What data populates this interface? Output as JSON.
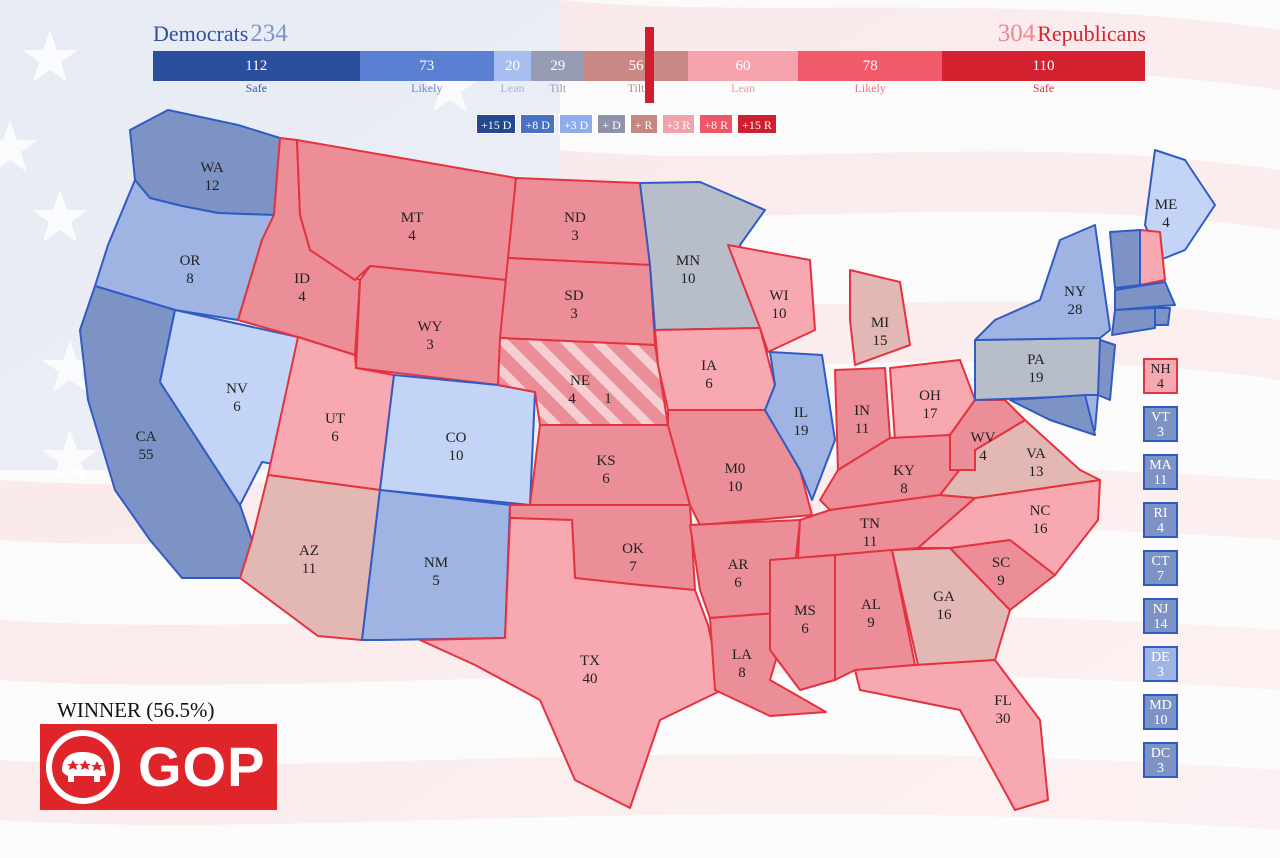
{
  "header": {
    "dem_label": "Democrats",
    "dem_total": "234",
    "rep_total": "304",
    "rep_label": "Republicans"
  },
  "bar": [
    {
      "value": 112,
      "label": "Safe",
      "color": "#2a4d9c"
    },
    {
      "value": 73,
      "label": "Likely",
      "color": "#5b80d3"
    },
    {
      "value": 20,
      "label": "Lean",
      "color": "#a6bff0"
    },
    {
      "value": 29,
      "label": "Tilt",
      "color": "#979bb4"
    },
    {
      "value": 56,
      "label": "Tilt",
      "color": "#c98884"
    },
    {
      "value": 60,
      "label": "Lean",
      "color": "#f7a3ad"
    },
    {
      "value": 78,
      "label": "Likely",
      "color": "#f05a6a"
    },
    {
      "value": 110,
      "label": "Safe",
      "color": "#d4212f"
    }
  ],
  "legend": [
    {
      "label": "+15 D",
      "color": "#23488f"
    },
    {
      "label": "+8 D",
      "color": "#4a72c4"
    },
    {
      "label": "+3 D",
      "color": "#8eadeb"
    },
    {
      "label": "+ D",
      "color": "#8f93aa"
    },
    {
      "label": "+ R",
      "color": "#c68780"
    },
    {
      "label": "+3 R",
      "color": "#f2a2aa"
    },
    {
      "label": "+8 R",
      "color": "#ef5565"
    },
    {
      "label": "+15 R",
      "color": "#cf1f2f"
    }
  ],
  "colors": {
    "safe_d": "#7e93c5",
    "likely_d": "#9fb4e3",
    "lean_d": "#c4d4f6",
    "tilt_d": "#b8bdca",
    "tilt_r": "#e3b7b4",
    "lean_r": "#f8a8b1",
    "likely_r": "#ec8e98",
    "safe_r": "#d9303e",
    "stroke_d": "#2f5cc4",
    "stroke_r": "#e5323f"
  },
  "states": {
    "WA": {
      "abbr": "WA",
      "ev": "12",
      "rating": "safe_d"
    },
    "OR": {
      "abbr": "OR",
      "ev": "8",
      "rating": "likely_d"
    },
    "CA": {
      "abbr": "CA",
      "ev": "55",
      "rating": "safe_d"
    },
    "NV": {
      "abbr": "NV",
      "ev": "6",
      "rating": "lean_d"
    },
    "ID": {
      "abbr": "ID",
      "ev": "4",
      "rating": "likely_r"
    },
    "MT": {
      "abbr": "MT",
      "ev": "4",
      "rating": "likely_r"
    },
    "WY": {
      "abbr": "WY",
      "ev": "3",
      "rating": "likely_r"
    },
    "UT": {
      "abbr": "UT",
      "ev": "6",
      "rating": "lean_r"
    },
    "CO": {
      "abbr": "CO",
      "ev": "10",
      "rating": "lean_d"
    },
    "AZ": {
      "abbr": "AZ",
      "ev": "11",
      "rating": "tilt_r"
    },
    "NM": {
      "abbr": "NM",
      "ev": "5",
      "rating": "likely_d"
    },
    "ND": {
      "abbr": "ND",
      "ev": "3",
      "rating": "likely_r"
    },
    "SD": {
      "abbr": "SD",
      "ev": "3",
      "rating": "likely_r"
    },
    "NE": {
      "abbr": "NE",
      "ev": "4",
      "ev2": "1",
      "rating": "likely_r"
    },
    "KS": {
      "abbr": "KS",
      "ev": "6",
      "rating": "likely_r"
    },
    "OK": {
      "abbr": "OK",
      "ev": "7",
      "rating": "likely_r"
    },
    "TX": {
      "abbr": "TX",
      "ev": "40",
      "rating": "lean_r"
    },
    "MN": {
      "abbr": "MN",
      "ev": "10",
      "rating": "tilt_d"
    },
    "IA": {
      "abbr": "IA",
      "ev": "6",
      "rating": "lean_r"
    },
    "MO": {
      "abbr": "M0",
      "ev": "10",
      "rating": "likely_r"
    },
    "AR": {
      "abbr": "AR",
      "ev": "6",
      "rating": "likely_r"
    },
    "LA": {
      "abbr": "LA",
      "ev": "8",
      "rating": "likely_r"
    },
    "WI": {
      "abbr": "WI",
      "ev": "10",
      "rating": "lean_r"
    },
    "IL": {
      "abbr": "IL",
      "ev": "19",
      "rating": "likely_d"
    },
    "MI": {
      "abbr": "MI",
      "ev": "15",
      "rating": "tilt_r"
    },
    "IN": {
      "abbr": "IN",
      "ev": "11",
      "rating": "likely_r"
    },
    "OH": {
      "abbr": "OH",
      "ev": "17",
      "rating": "lean_r"
    },
    "KY": {
      "abbr": "KY",
      "ev": "8",
      "rating": "likely_r"
    },
    "TN": {
      "abbr": "TN",
      "ev": "11",
      "rating": "likely_r"
    },
    "MS": {
      "abbr": "MS",
      "ev": "6",
      "rating": "likely_r"
    },
    "AL": {
      "abbr": "AL",
      "ev": "9",
      "rating": "likely_r"
    },
    "GA": {
      "abbr": "GA",
      "ev": "16",
      "rating": "tilt_r"
    },
    "FL": {
      "abbr": "FL",
      "ev": "30",
      "rating": "lean_r"
    },
    "SC": {
      "abbr": "SC",
      "ev": "9",
      "rating": "likely_r"
    },
    "NC": {
      "abbr": "NC",
      "ev": "16",
      "rating": "lean_r"
    },
    "VA": {
      "abbr": "VA",
      "ev": "13",
      "rating": "tilt_r"
    },
    "WV": {
      "abbr": "WV",
      "ev": "4",
      "rating": "likely_r"
    },
    "PA": {
      "abbr": "PA",
      "ev": "19",
      "rating": "tilt_d"
    },
    "NY": {
      "abbr": "NY",
      "ev": "28",
      "rating": "likely_d"
    },
    "ME": {
      "abbr": "ME",
      "ev": "4",
      "rating": "lean_d"
    }
  },
  "small_states": [
    {
      "abbr": "NH",
      "ev": "4",
      "rating": "lean_r"
    },
    {
      "abbr": "VT",
      "ev": "3",
      "rating": "safe_d"
    },
    {
      "abbr": "MA",
      "ev": "11",
      "rating": "safe_d"
    },
    {
      "abbr": "RI",
      "ev": "4",
      "rating": "safe_d"
    },
    {
      "abbr": "CT",
      "ev": "7",
      "rating": "safe_d"
    },
    {
      "abbr": "NJ",
      "ev": "14",
      "rating": "safe_d"
    },
    {
      "abbr": "DE",
      "ev": "3",
      "rating": "likely_d"
    },
    {
      "abbr": "MD",
      "ev": "10",
      "rating": "safe_d"
    },
    {
      "abbr": "DC",
      "ev": "3",
      "rating": "safe_d"
    }
  ],
  "winner": {
    "text": "WINNER (56.5%)",
    "party": "GOP"
  }
}
